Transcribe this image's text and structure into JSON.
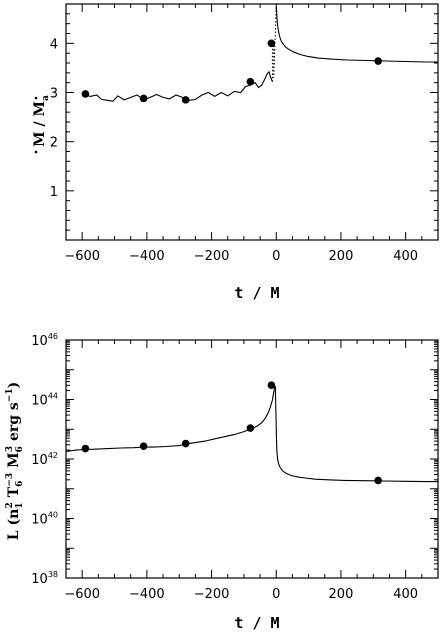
{
  "chart_data": [
    {
      "type": "line",
      "title": "",
      "xlabel": "t / M",
      "ylabel_parts": {
        "lead": "M",
        "mid": " / ",
        "trail": "M",
        "sub": "a"
      },
      "xlim": [
        -650,
        500
      ],
      "ylim": [
        0,
        4.8
      ],
      "x_ticks": [
        -600,
        -400,
        -200,
        0,
        200,
        400
      ],
      "y_ticks": [
        1,
        2,
        3,
        4
      ],
      "x_tick_labels": [
        "−600",
        "−400",
        "−200",
        "0",
        "200",
        "400"
      ],
      "y_tick_labels": [
        "1",
        "2",
        "3",
        "4"
      ],
      "series": [
        {
          "style": "solid",
          "x": [
            -600,
            -575,
            -555,
            -540,
            -520,
            -505,
            -490,
            -470,
            -450,
            -430,
            -410,
            -390,
            -370,
            -350,
            -330,
            -310,
            -290,
            -270,
            -250,
            -230,
            -210,
            -190,
            -170,
            -150,
            -130,
            -110,
            -95,
            -80,
            -65,
            -55,
            -45,
            -35,
            -28,
            -22,
            -18,
            -12
          ],
          "y": [
            2.97,
            2.92,
            2.95,
            2.86,
            2.84,
            2.82,
            2.93,
            2.85,
            2.9,
            2.95,
            2.85,
            2.9,
            2.96,
            2.9,
            2.87,
            2.95,
            2.9,
            2.84,
            2.86,
            2.95,
            3.0,
            2.92,
            3.0,
            2.93,
            3.02,
            3.0,
            3.12,
            3.15,
            3.2,
            3.1,
            3.15,
            3.28,
            3.38,
            3.42,
            3.32,
            3.22
          ]
        },
        {
          "style": "dotted",
          "x": [
            -12,
            -12,
            -8,
            -8,
            0
          ],
          "y": [
            3.22,
            4.0,
            4.0,
            3.3,
            4.75
          ]
        },
        {
          "style": "solid",
          "x": [
            0,
            3,
            6,
            10,
            15,
            22,
            30,
            40,
            55,
            75,
            100,
            130,
            170,
            220,
            280,
            340,
            400,
            460,
            500
          ],
          "y": [
            4.75,
            4.45,
            4.28,
            4.15,
            4.05,
            3.98,
            3.92,
            3.87,
            3.82,
            3.77,
            3.73,
            3.7,
            3.68,
            3.66,
            3.65,
            3.64,
            3.63,
            3.62,
            3.62
          ]
        }
      ],
      "markers": {
        "x": [
          -590,
          -410,
          -280,
          -80,
          -15,
          315
        ],
        "y": [
          2.97,
          2.88,
          2.85,
          3.22,
          4.0,
          3.64
        ]
      }
    },
    {
      "type": "line",
      "title": "",
      "xlabel": "t / M",
      "ylabel": "L (n1² T6⁻³ M6³ erg s⁻¹)",
      "ylabel_parts": {
        "lead": "L (n",
        "a_sub": "1",
        "a_sup": "2",
        "b": " T",
        "b_sub": "6",
        "b_sup": "−3",
        "c": " M",
        "c_sub": "6",
        "c_sup": "3",
        "d": " erg s",
        "d_sup": "−1",
        "e": ")"
      },
      "y_scale": "log",
      "xlim": [
        -650,
        500
      ],
      "ylim_log10": [
        38,
        46
      ],
      "x_ticks": [
        -600,
        -400,
        -200,
        0,
        200,
        400
      ],
      "x_tick_labels": [
        "−600",
        "−400",
        "−200",
        "0",
        "200",
        "400"
      ],
      "y_ticks_log10": [
        38,
        40,
        42,
        44,
        46
      ],
      "y_tick_base": "10",
      "y_tick_exps": [
        "38",
        "40",
        "42",
        "44",
        "46"
      ],
      "series": [
        {
          "style": "solid",
          "x": [
            -650,
            -620,
            -590,
            -560,
            -520,
            -480,
            -440,
            -410,
            -380,
            -340,
            -300,
            -280,
            -250,
            -220,
            -190,
            -160,
            -130,
            -100,
            -80,
            -60,
            -45,
            -35,
            -25,
            -18,
            -12,
            -8,
            -5,
            -3
          ],
          "y_log10": [
            42.25,
            42.3,
            42.32,
            42.33,
            42.35,
            42.37,
            42.38,
            42.4,
            42.4,
            42.42,
            42.45,
            42.5,
            42.55,
            42.6,
            42.68,
            42.75,
            42.82,
            42.92,
            43.0,
            43.1,
            43.22,
            43.35,
            43.55,
            43.75,
            43.98,
            44.25,
            44.4,
            44.45
          ]
        },
        {
          "style": "solid",
          "x": [
            -3,
            -1,
            0,
            1,
            2,
            4,
            7,
            12,
            20,
            30,
            45,
            65,
            90,
            120,
            160,
            210,
            270,
            330,
            400,
            460,
            500
          ],
          "y_log10": [
            44.45,
            43.6,
            42.95,
            42.55,
            42.25,
            42.0,
            41.85,
            41.72,
            41.6,
            41.52,
            41.45,
            41.4,
            41.36,
            41.32,
            41.3,
            41.28,
            41.27,
            41.26,
            41.25,
            41.24,
            41.24
          ]
        }
      ],
      "markers": {
        "x": [
          -590,
          -410,
          -280,
          -80,
          -15,
          315
        ],
        "y_log10": [
          42.35,
          42.43,
          42.52,
          43.04,
          44.48,
          41.28
        ]
      }
    }
  ]
}
